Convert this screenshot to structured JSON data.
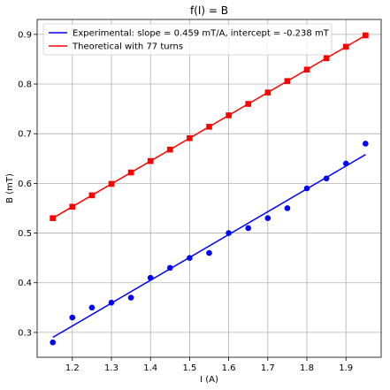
{
  "chart_data": {
    "type": "scatter",
    "title": "f(I) = B",
    "xlabel": "I (A)",
    "ylabel": "B (mT)",
    "xlim": [
      1.11,
      1.99
    ],
    "ylim": [
      0.25,
      0.93
    ],
    "x_ticks": [
      1.2,
      1.3,
      1.4,
      1.5,
      1.6,
      1.7,
      1.8,
      1.9
    ],
    "x_tick_labels": [
      "1.2",
      "1.3",
      "1.4",
      "1.5",
      "1.6",
      "1.7",
      "1.8",
      "1.9"
    ],
    "y_ticks": [
      0.3,
      0.4,
      0.5,
      0.6,
      0.7,
      0.8,
      0.9
    ],
    "y_tick_labels": [
      "0.3",
      "0.4",
      "0.5",
      "0.6",
      "0.7",
      "0.8",
      "0.9"
    ],
    "grid": true,
    "legend_position": "top-left",
    "legend": [
      {
        "label": "Experimental: slope = 0.459 mT/A, intercept = -0.238 mT",
        "color": "#0000ff",
        "series": "experimental_fit"
      },
      {
        "label": "Theoretical with 77 turns",
        "color": "#ff0000",
        "series": "theoretical_line"
      }
    ],
    "series": [
      {
        "kind": "points",
        "marker": "circle",
        "color": "#0000ff",
        "x": [
          1.15,
          1.2,
          1.25,
          1.3,
          1.35,
          1.4,
          1.45,
          1.5,
          1.55,
          1.6,
          1.65,
          1.7,
          1.75,
          1.8,
          1.85,
          1.9,
          1.95
        ],
        "y": [
          0.28,
          0.33,
          0.35,
          0.36,
          0.37,
          0.41,
          0.43,
          0.45,
          0.46,
          0.5,
          0.51,
          0.53,
          0.55,
          0.59,
          0.61,
          0.64,
          0.68
        ]
      },
      {
        "kind": "line",
        "key": "experimental_fit",
        "color": "#0000ff",
        "x": [
          1.15,
          1.95
        ],
        "y": [
          0.29,
          0.658
        ]
      },
      {
        "kind": "line",
        "key": "theoretical_line",
        "color": "#ff0000",
        "x": [
          1.15,
          1.95
        ],
        "y": [
          0.53,
          0.898
        ]
      },
      {
        "kind": "points",
        "marker": "square",
        "color": "#ff0000",
        "x": [
          1.15,
          1.2,
          1.25,
          1.3,
          1.35,
          1.4,
          1.45,
          1.5,
          1.55,
          1.6,
          1.65,
          1.7,
          1.75,
          1.8,
          1.85,
          1.9,
          1.95
        ],
        "y": [
          0.53,
          0.553,
          0.576,
          0.599,
          0.622,
          0.645,
          0.668,
          0.691,
          0.714,
          0.737,
          0.76,
          0.783,
          0.806,
          0.829,
          0.852,
          0.875,
          0.898
        ]
      }
    ]
  }
}
